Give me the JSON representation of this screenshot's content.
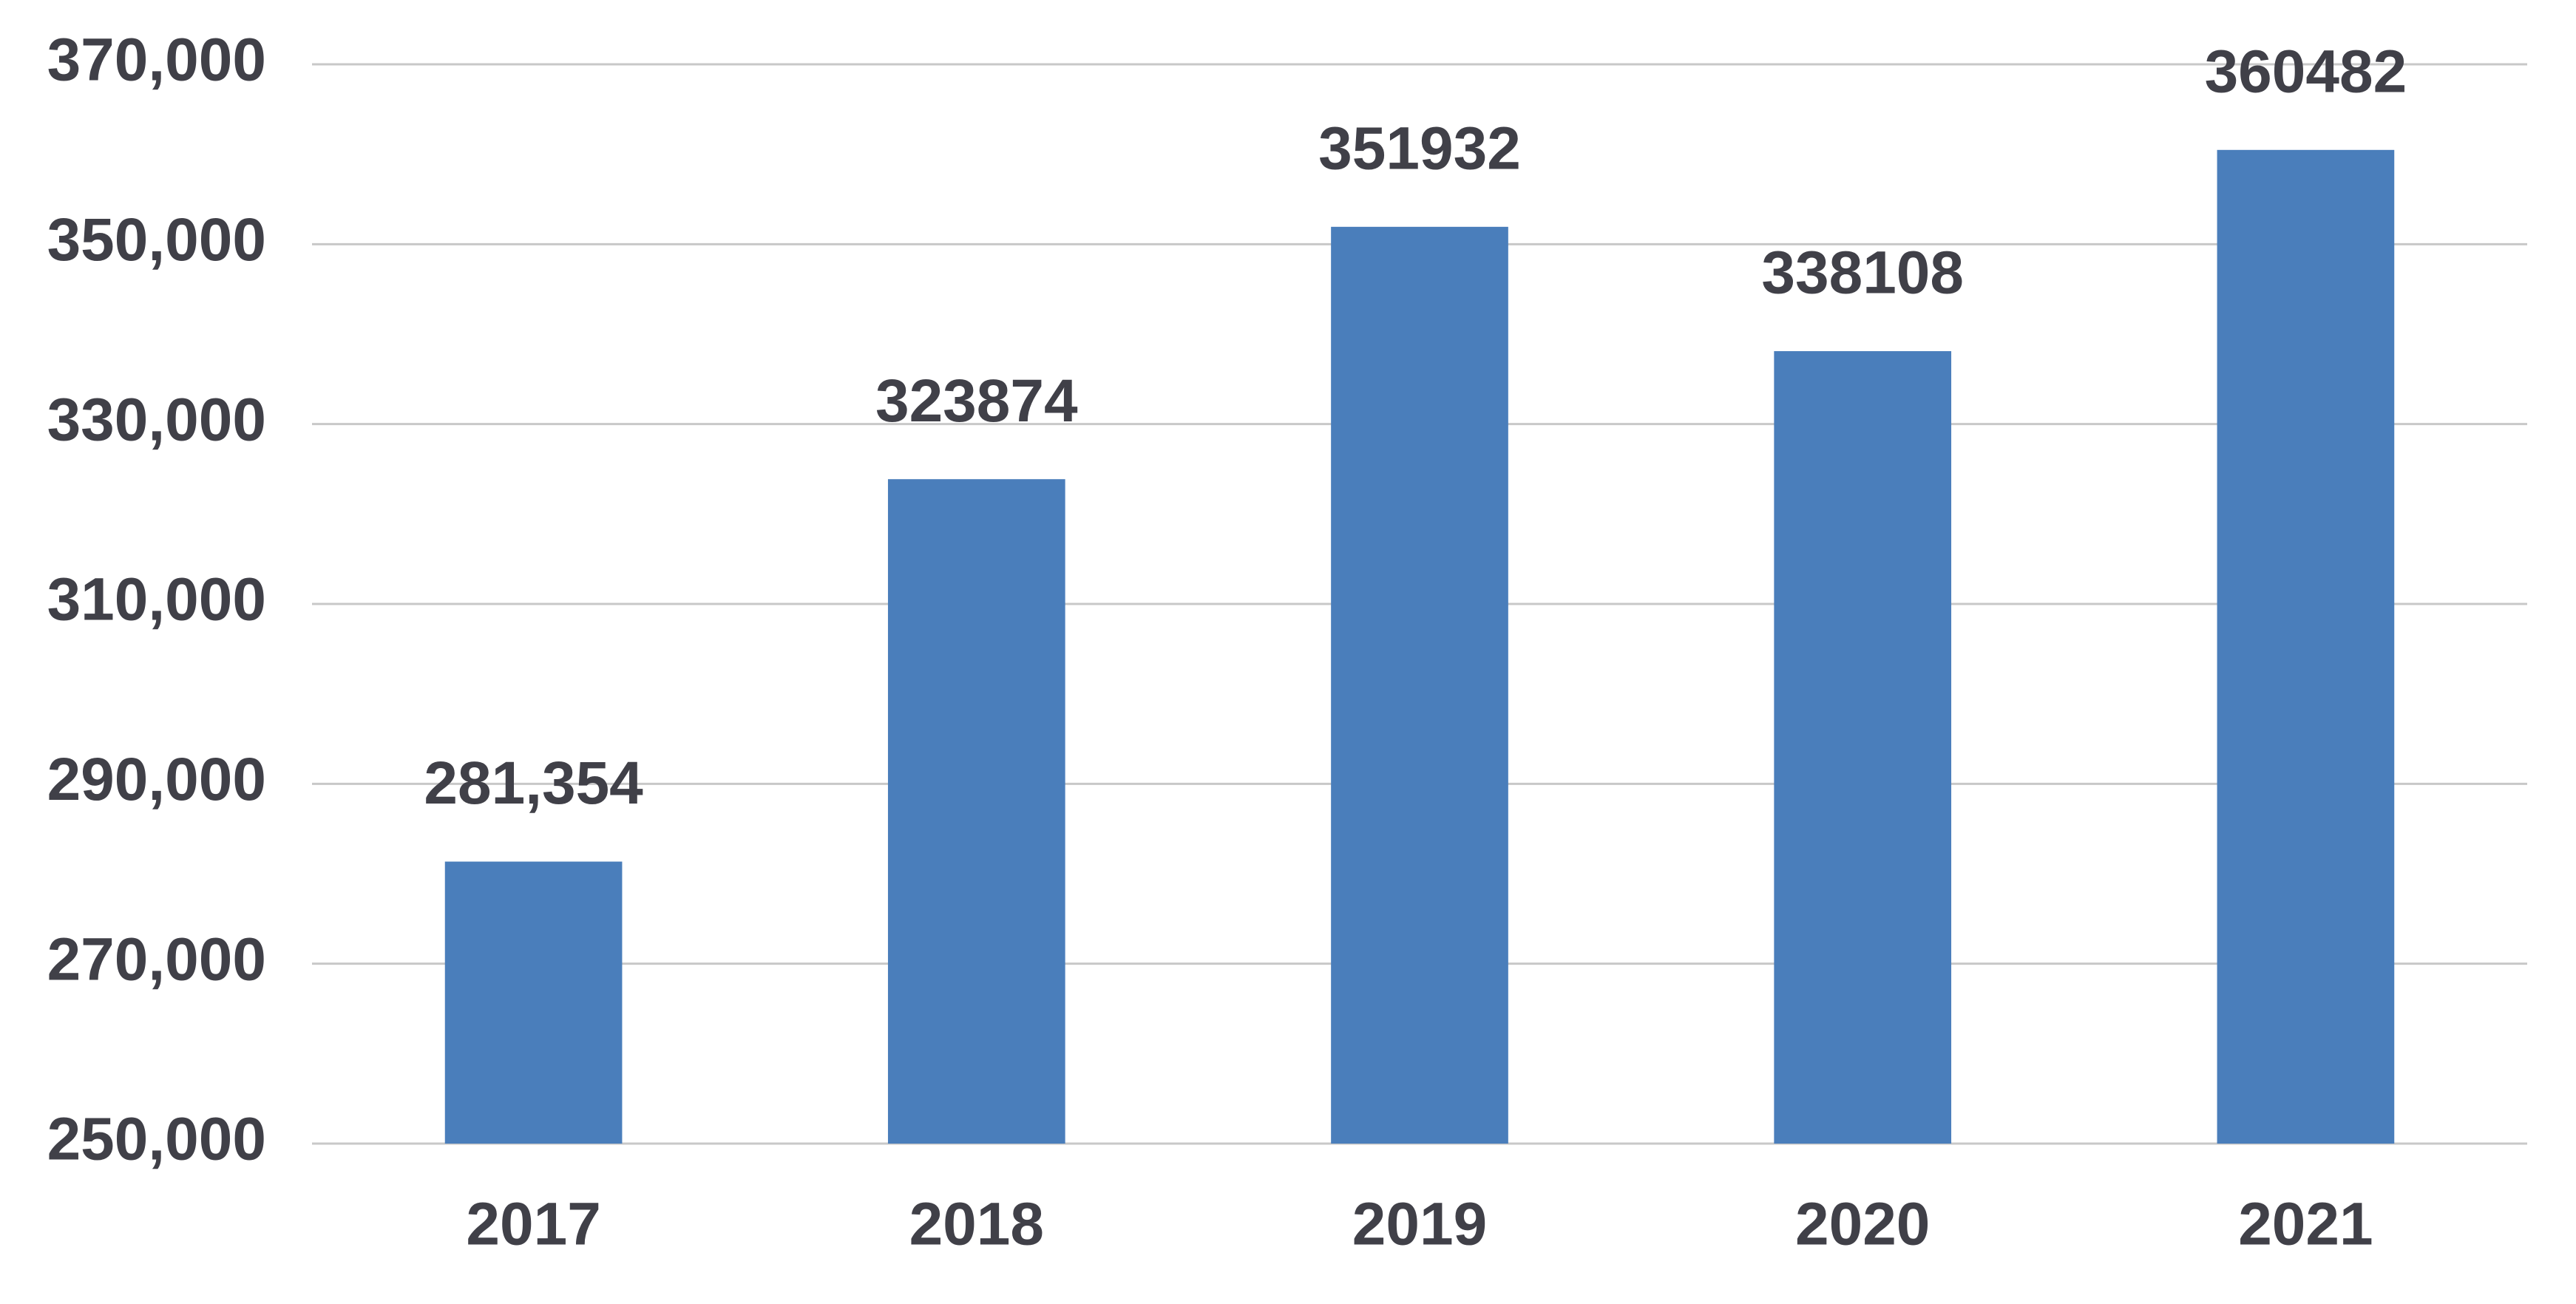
{
  "chart_data": {
    "type": "bar",
    "categories": [
      "2017",
      "2018",
      "2019",
      "2020",
      "2021"
    ],
    "values": [
      281354,
      323874,
      351932,
      338108,
      360482
    ],
    "value_labels": [
      "281,354",
      "323874",
      "351932",
      "338108",
      "360482"
    ],
    "color": "#4a7ebb",
    "ylim": [
      250000,
      370000
    ],
    "yticks": [
      {
        "value": 250000,
        "label": "250,000"
      },
      {
        "value": 270000,
        "label": "270,000"
      },
      {
        "value": 290000,
        "label": "290,000"
      },
      {
        "value": 310000,
        "label": "310,000"
      },
      {
        "value": 330000,
        "label": "330,000"
      },
      {
        "value": 350000,
        "label": "350,000"
      },
      {
        "value": 370000,
        "label": "370,000"
      }
    ],
    "grid": true
  }
}
